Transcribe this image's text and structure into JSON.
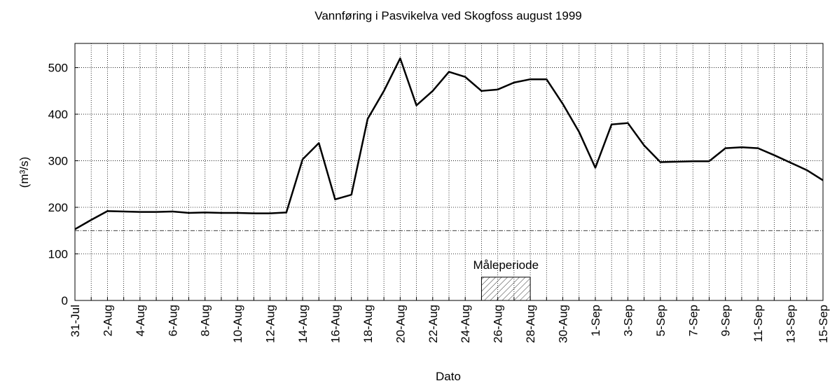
{
  "chart_data": {
    "type": "line",
    "title": "Vannføring i Pasvikelva ved Skogfoss august 1999",
    "xlabel": "Dato",
    "ylabel": "(m³/s)",
    "categories": [
      "31-Jul",
      null,
      "2-Aug",
      null,
      "4-Aug",
      null,
      "6-Aug",
      null,
      "8-Aug",
      null,
      "10-Aug",
      null,
      "12-Aug",
      null,
      "14-Aug",
      null,
      "16-Aug",
      null,
      "18-Aug",
      null,
      "20-Aug",
      null,
      "22-Aug",
      null,
      "24-Aug",
      null,
      "26-Aug",
      null,
      "28-Aug",
      null,
      "30-Aug",
      null,
      "1-Sep",
      null,
      "3-Sep",
      null,
      "5-Sep",
      null,
      "7-Sep",
      null,
      "9-Sep",
      null,
      "11-Sep",
      null,
      "13-Sep",
      null,
      "15-Sep"
    ],
    "series": [
      {
        "name": "Vannføring",
        "color": "#000000",
        "values": [
          153,
          173,
          192,
          191,
          190,
          190,
          191,
          188,
          189,
          188,
          188,
          187,
          187,
          189,
          303,
          338,
          217,
          227,
          390,
          450,
          520,
          419,
          450,
          491,
          480,
          450,
          453,
          468,
          475,
          475,
          422,
          362,
          285,
          378,
          381,
          333,
          297,
          298,
          299,
          299,
          327,
          329,
          327,
          312,
          296,
          280,
          258
        ]
      }
    ],
    "ylim": [
      0,
      552
    ],
    "yticks": [
      0,
      100,
      200,
      300,
      400,
      500
    ],
    "grid": true,
    "reference_line": 150,
    "annotation": {
      "text": "Måleperiode",
      "start": 25,
      "end": 28,
      "height": 50
    }
  }
}
